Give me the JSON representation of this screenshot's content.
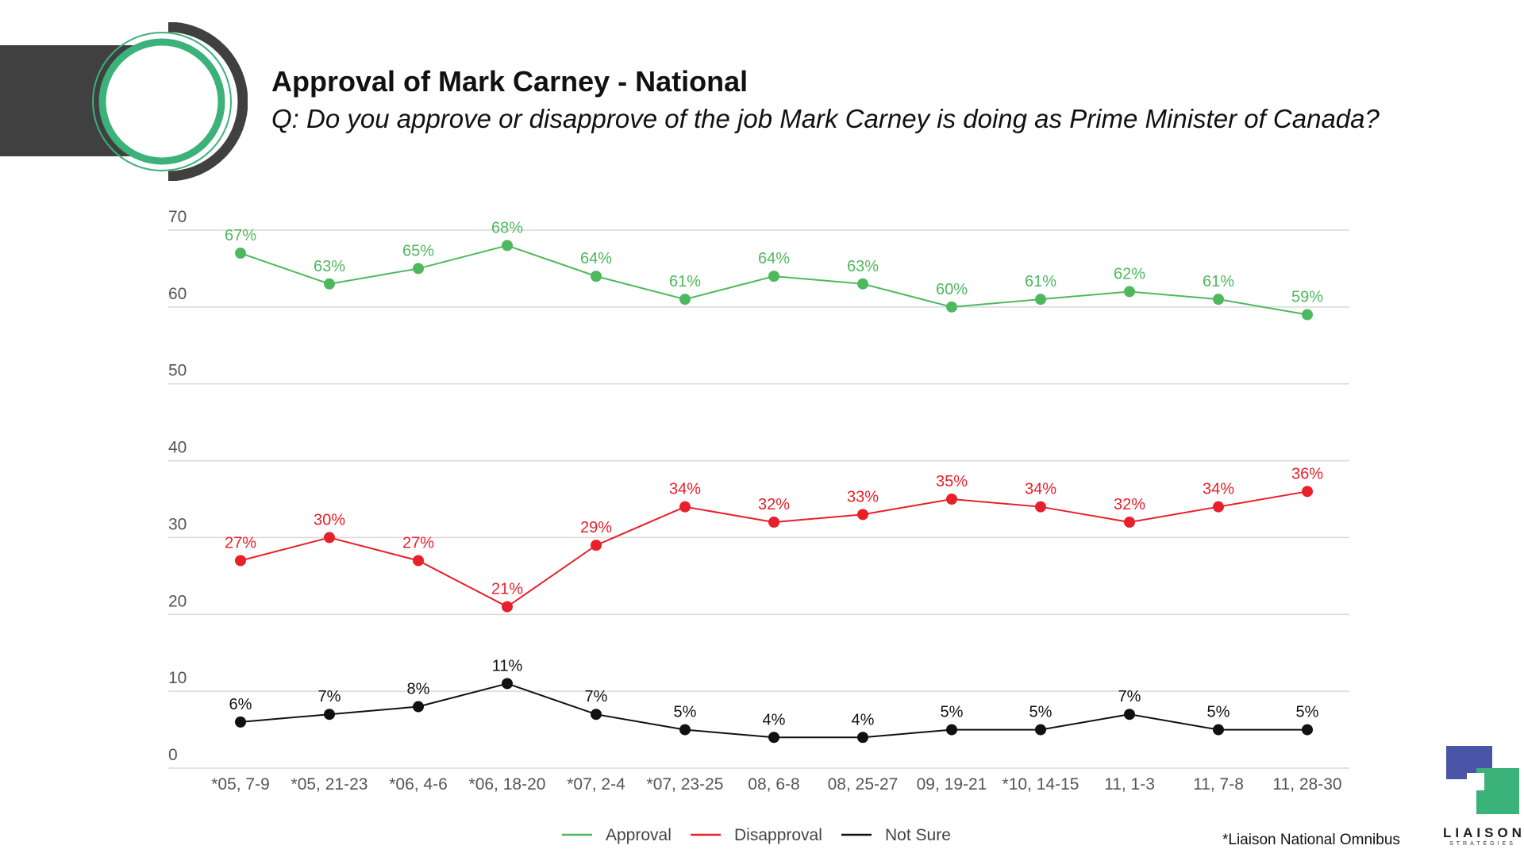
{
  "header": {
    "title": "Approval of Mark Carney - National",
    "subtitle": "Q: Do you approve or disapprove of the job Mark Carney is doing as Prime Minister of Canada?"
  },
  "footnote": "*Liaison National Omnibus",
  "logo": {
    "name": "LIAISON",
    "sub": "STRATÉGIES",
    "colors": [
      "#4b55a8",
      "#3bb27a"
    ]
  },
  "colors": {
    "approval": "#4fb85e",
    "disapproval": "#e8202a",
    "not_sure": "#111111",
    "grid": "#d9d9d9",
    "axis_text": "#555555",
    "brand_dark": "#404040",
    "brand_green": "#3bb27a"
  },
  "chart_data": {
    "type": "line",
    "categories": [
      "*05, 7-9",
      "*05, 21-23",
      "*06, 4-6",
      "*06, 18-20",
      "*07, 2-4",
      "*07, 23-25",
      "08, 6-8",
      "08, 25-27",
      "09, 19-21",
      "*10, 14-15",
      "11, 1-3",
      "11, 7-8",
      "11, 28-30"
    ],
    "series": [
      {
        "name": "Approval",
        "color": "#4fb85e",
        "values": [
          67,
          63,
          65,
          68,
          64,
          61,
          64,
          63,
          60,
          61,
          62,
          61,
          59
        ]
      },
      {
        "name": "Disapproval",
        "color": "#e8202a",
        "values": [
          27,
          30,
          27,
          21,
          29,
          34,
          32,
          33,
          35,
          34,
          32,
          34,
          36
        ]
      },
      {
        "name": "Not Sure",
        "color": "#111111",
        "values": [
          6,
          7,
          8,
          11,
          7,
          5,
          4,
          4,
          5,
          5,
          7,
          5,
          5
        ]
      }
    ],
    "label_suffix": "%",
    "ylim": [
      0,
      70
    ],
    "yticks": [
      0,
      10,
      20,
      30,
      40,
      50,
      60,
      70
    ],
    "grid": true,
    "legend": "bottom-center"
  }
}
